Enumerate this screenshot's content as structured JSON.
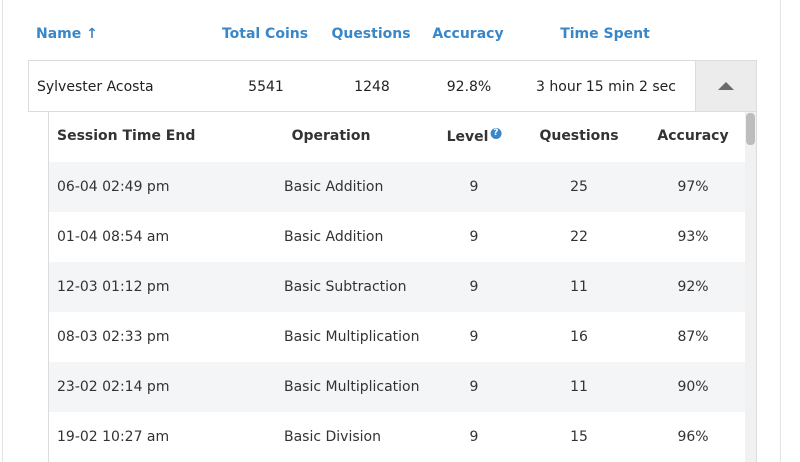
{
  "columns": {
    "name": "Name",
    "total_coins": "Total Coins",
    "questions": "Questions",
    "accuracy": "Accuracy",
    "time_spent": "Time Spent"
  },
  "sort_indicator": "↑",
  "student": {
    "name": "Sylvester Acosta",
    "total_coins": "5541",
    "questions": "1248",
    "accuracy": "92.8%",
    "time_spent": "3 hour 15 min 2 sec"
  },
  "icons": {
    "collapse": "chevron-up-icon",
    "help": "question-circle-icon"
  },
  "colors": {
    "header_blue": "#3a87c8",
    "row_alt": "#f4f5f7"
  },
  "sessions": {
    "columns": {
      "session_time_end": "Session Time End",
      "operation": "Operation",
      "level": "Level",
      "questions": "Questions",
      "accuracy": "Accuracy"
    },
    "help_glyph": "?",
    "rows": [
      {
        "time": "06-04 02:49 pm",
        "operation": "Basic Addition",
        "level": "9",
        "questions": "25",
        "accuracy": "97%"
      },
      {
        "time": "01-04 08:54 am",
        "operation": "Basic Addition",
        "level": "9",
        "questions": "22",
        "accuracy": "93%"
      },
      {
        "time": "12-03 01:12 pm",
        "operation": "Basic Subtraction",
        "level": "9",
        "questions": "11",
        "accuracy": "92%"
      },
      {
        "time": "08-03 02:33 pm",
        "operation": "Basic Multiplication",
        "level": "9",
        "questions": "16",
        "accuracy": "87%"
      },
      {
        "time": "23-02 02:14 pm",
        "operation": "Basic Multiplication",
        "level": "9",
        "questions": "11",
        "accuracy": "90%"
      },
      {
        "time": "19-02 10:27 am",
        "operation": "Basic Division",
        "level": "9",
        "questions": "15",
        "accuracy": "96%"
      }
    ]
  }
}
